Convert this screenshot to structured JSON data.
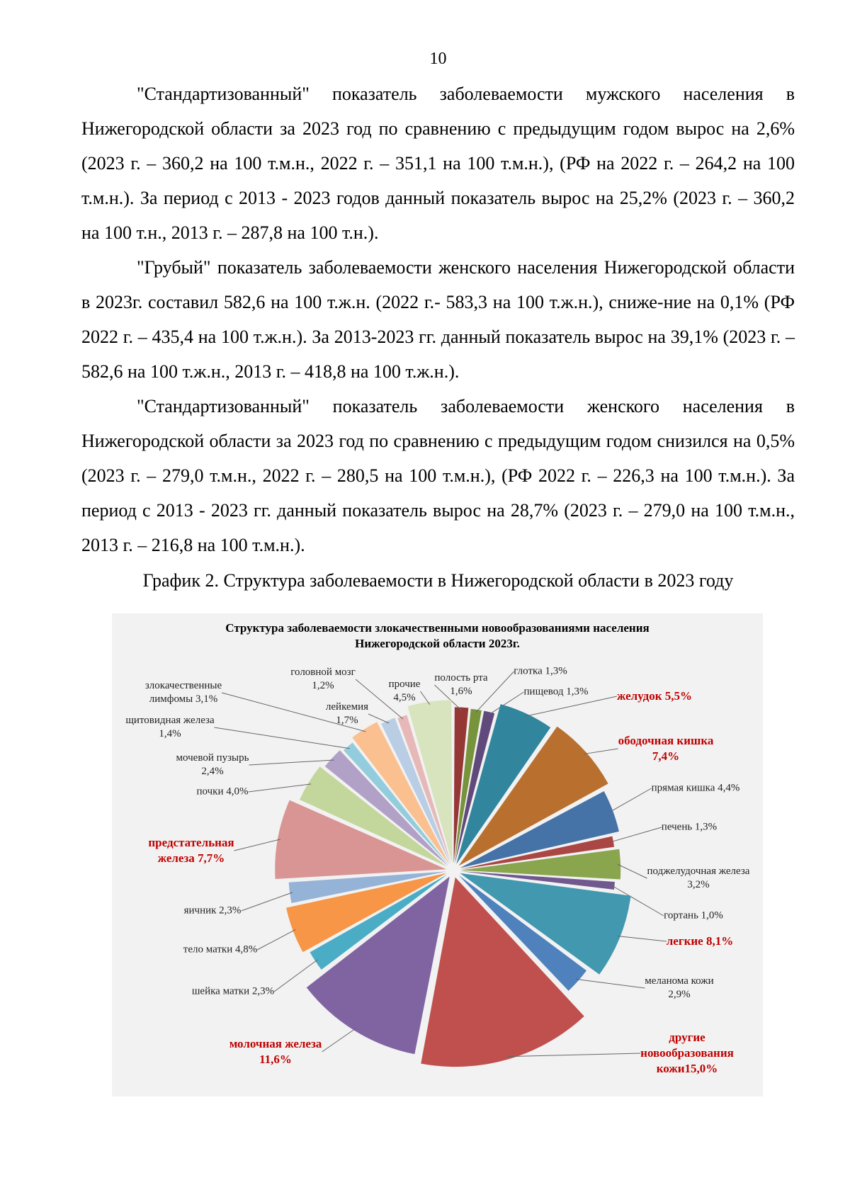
{
  "page_number": "10",
  "paragraphs": [
    "\"Стандартизованный\" показатель заболеваемости мужского населения в Нижегородской области за 2023 год по сравнению с предыдущим годом вырос на 2,6% (2023 г. – 360,2 на 100 т.м.н., 2022 г. – 351,1 на 100 т.м.н.), (РФ на 2022 г. – 264,2 на 100 т.м.н.). За период с 2013 - 2023 годов данный показатель вырос на 25,2% (2023 г. – 360,2 на 100 т.н., 2013 г. – 287,8 на 100 т.н.).",
    "\"Грубый\" показатель заболеваемости женского населения Нижегородской области в 2023г. составил 582,6 на 100 т.ж.н. (2022 г.- 583,3 на 100 т.ж.н.), сниже-ние на 0,1% (РФ 2022 г. – 435,4 на 100 т.ж.н.). За 2013-2023 гг. данный показатель вырос на 39,1% (2023 г. – 582,6 на 100 т.ж.н., 2013 г. – 418,8 на 100 т.ж.н.).",
    "\"Стандартизованный\" показатель заболеваемости женского населения в Нижегородской области за 2023 год по сравнению с предыдущим годом снизился на 0,5% (2023 г. – 279,0 т.м.н., 2022 г. – 280,5 на 100 т.м.н.), (РФ 2022 г. – 226,3 на 100 т.м.н.). За период с 2013 - 2023 гг. данный показатель вырос на 28,7% (2023 г. – 279,0 на 100 т.м.н., 2013 г. – 216,8 на 100 т.м.н.)."
  ],
  "caption": "График 2. Структура заболеваемости в Нижегородской области в 2023 году",
  "chart_data": {
    "type": "pie",
    "title": [
      "Структура заболеваемости злокачественными новообразованиями населения",
      "Нижегородской области 2023г."
    ],
    "unit": "%",
    "highlight_color": "#c00000",
    "background": "#f2f2f2",
    "slices": [
      {
        "label_lines": [
          "полость рта",
          "1,6%"
        ],
        "value": 1.6,
        "color": "#953735",
        "highlight": false
      },
      {
        "label_lines": [
          "глотка 1,3%"
        ],
        "value": 1.3,
        "color": "#77933c",
        "highlight": false
      },
      {
        "label_lines": [
          "пищевод 1,3%"
        ],
        "value": 1.3,
        "color": "#604a7b",
        "highlight": false
      },
      {
        "label_lines": [
          "желудок 5,5%"
        ],
        "value": 5.5,
        "color": "#31859c",
        "highlight": true
      },
      {
        "label_lines": [
          "ободочная кишка",
          "7,4%"
        ],
        "value": 7.4,
        "color": "#b9702f",
        "highlight": true
      },
      {
        "label_lines": [
          "прямая кишка 4,4%"
        ],
        "value": 4.4,
        "color": "#4572a7",
        "highlight": false
      },
      {
        "label_lines": [
          "печень 1,3%"
        ],
        "value": 1.3,
        "color": "#aa4643",
        "highlight": false
      },
      {
        "label_lines": [
          "поджелудочная железа",
          "3,2%"
        ],
        "value": 3.2,
        "color": "#89a54e",
        "highlight": false
      },
      {
        "label_lines": [
          "гортань 1,0%"
        ],
        "value": 1.0,
        "color": "#71588f",
        "highlight": false
      },
      {
        "label_lines": [
          "легкие 8,1%"
        ],
        "value": 8.1,
        "color": "#4198af",
        "highlight": true
      },
      {
        "label_lines": [
          "меланома кожи",
          "2,9%"
        ],
        "value": 2.9,
        "color": "#4f81bd",
        "highlight": false
      },
      {
        "label_lines": [
          "другие",
          "новообразования",
          "кожи15,0%"
        ],
        "value": 15.0,
        "color": "#c0504d",
        "highlight": true
      },
      {
        "label_lines": [
          "молочная железа",
          "11,6%"
        ],
        "value": 11.6,
        "color": "#8064a2",
        "highlight": true
      },
      {
        "label_lines": [
          "шейка матки 2,3%"
        ],
        "value": 2.3,
        "color": "#4bacc6",
        "highlight": false
      },
      {
        "label_lines": [
          "тело матки 4,8%"
        ],
        "value": 4.8,
        "color": "#f79646",
        "highlight": false
      },
      {
        "label_lines": [
          "яичник 2,3%"
        ],
        "value": 2.3,
        "color": "#95b3d7",
        "highlight": false
      },
      {
        "label_lines": [
          "предстательная",
          "железа 7,7%"
        ],
        "value": 7.7,
        "color": "#d99594",
        "highlight": true
      },
      {
        "label_lines": [
          "почки 4,0%"
        ],
        "value": 4.0,
        "color": "#c3d69b",
        "highlight": false
      },
      {
        "label_lines": [
          "мочевой пузырь",
          "2,4%"
        ],
        "value": 2.4,
        "color": "#b2a1c7",
        "highlight": false
      },
      {
        "label_lines": [
          "щитовидная железа",
          "1,4%"
        ],
        "value": 1.4,
        "color": "#93cddd",
        "highlight": false
      },
      {
        "label_lines": [
          "злокачественные",
          "лимфомы 3,1%"
        ],
        "value": 3.1,
        "color": "#fac090",
        "highlight": false
      },
      {
        "label_lines": [
          "лейкемия",
          "1,7%"
        ],
        "value": 1.7,
        "color": "#b9cde5",
        "highlight": false
      },
      {
        "label_lines": [
          "головной мозг",
          "1,2%"
        ],
        "value": 1.2,
        "color": "#e6b9b8",
        "highlight": false
      },
      {
        "label_lines": [
          "прочие",
          "4,5%"
        ],
        "value": 4.5,
        "color": "#d7e4bd",
        "highlight": false
      }
    ]
  }
}
